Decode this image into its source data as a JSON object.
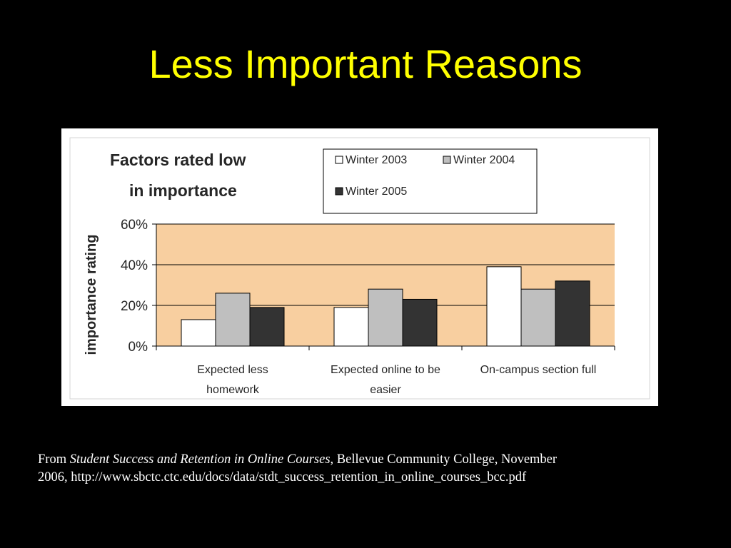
{
  "slide": {
    "title": "Less Important Reasons"
  },
  "caption": {
    "prefix": "From ",
    "source_title": "Student Success and Retention in Online Courses",
    "rest_line1": ", Bellevue Community College, November",
    "line2": "2006, http://www.sbctc.ctc.edu/docs/data/stdt_success_retention_in_online_courses_bcc.pdf"
  },
  "chart_data": {
    "type": "bar",
    "title_lines": [
      "Factors rated low",
      "in importance"
    ],
    "ylabel": "importance rating",
    "xlabel": "",
    "categories": [
      [
        "Expected less",
        "homework"
      ],
      [
        "Expected online to be",
        "easier"
      ],
      [
        "On-campus section full"
      ]
    ],
    "series": [
      {
        "name": "Winter 2003",
        "color": "#ffffff",
        "values": [
          13,
          19,
          39
        ]
      },
      {
        "name": "Winter 2004",
        "color": "#bfbfbf",
        "values": [
          26,
          28,
          28
        ]
      },
      {
        "name": "Winter 2005",
        "color": "#333333",
        "values": [
          19,
          23,
          32
        ]
      }
    ],
    "ylim": [
      0,
      60
    ],
    "yticks": [
      {
        "value": 0,
        "label": "0%"
      },
      {
        "value": 20,
        "label": "20%"
      },
      {
        "value": 40,
        "label": "40%"
      },
      {
        "value": 60,
        "label": "60%"
      }
    ],
    "grid": true,
    "plot_background": "#f8cfa0",
    "legend_position": "top-right"
  }
}
